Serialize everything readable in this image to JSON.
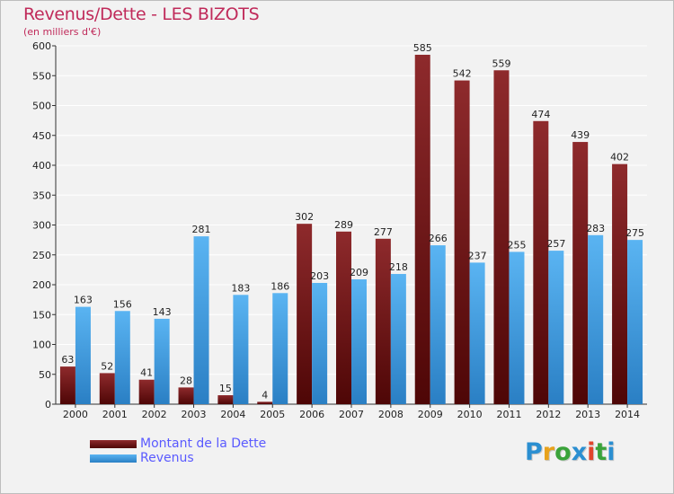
{
  "title": "Revenus/Dette - LES BIZOTS",
  "subtitle": "(en milliers d'€)",
  "logo": {
    "text": "Proxiti",
    "letter_colors": [
      "#2b8fd1",
      "#e8a21c",
      "#3aa33a",
      "#2b8fd1",
      "#e0452c",
      "#3aa33a",
      "#2b8fd1"
    ]
  },
  "legend": [
    {
      "label": "Montant de la Dette",
      "color": "#7a1a1c"
    },
    {
      "label": "Revenus",
      "color": "#3e9ee2"
    }
  ],
  "chart_data": {
    "type": "bar",
    "categories": [
      "2000",
      "2001",
      "2002",
      "2003",
      "2004",
      "2005",
      "2006",
      "2007",
      "2008",
      "2009",
      "2010",
      "2011",
      "2012",
      "2013",
      "2014"
    ],
    "series": [
      {
        "name": "Montant de la Dette",
        "color": "#7a1a1c",
        "values": [
          63,
          52,
          41,
          28,
          15,
          4,
          302,
          289,
          277,
          585,
          542,
          559,
          474,
          439,
          402
        ]
      },
      {
        "name": "Revenus",
        "color": "#3e9ee2",
        "values": [
          163,
          156,
          143,
          281,
          183,
          186,
          203,
          209,
          218,
          266,
          237,
          255,
          257,
          283,
          275
        ]
      }
    ],
    "ylim": [
      0,
      600
    ],
    "yticks": [
      0,
      50,
      100,
      150,
      200,
      250,
      300,
      350,
      400,
      450,
      500,
      550,
      600
    ],
    "grid": true,
    "legend_position": "bottom-left"
  }
}
